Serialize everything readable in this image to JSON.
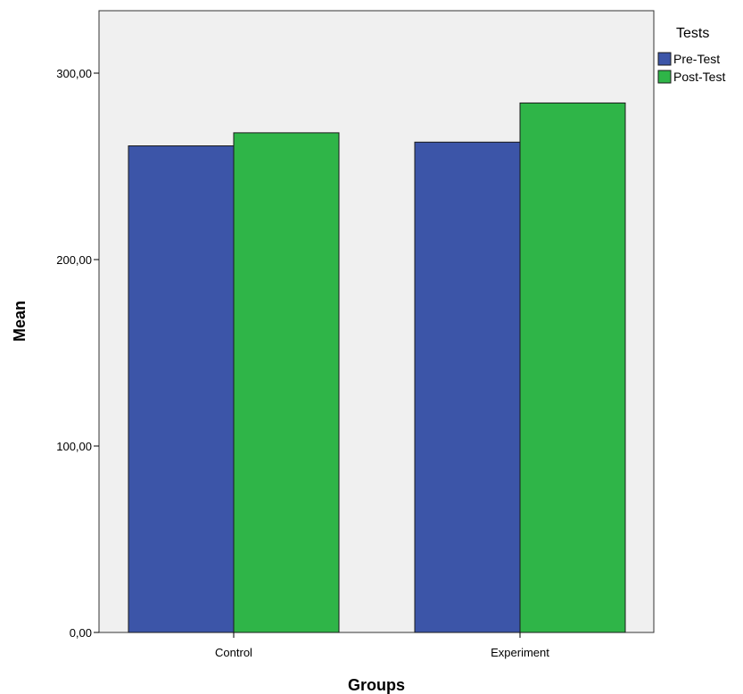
{
  "chart_data": {
    "type": "bar",
    "xlabel": "Groups",
    "ylabel": "Mean",
    "ylim": [
      0,
      330
    ],
    "yticks": [
      0,
      100,
      200,
      300
    ],
    "ytick_labels": [
      "0,00",
      "100,00",
      "200,00",
      "300,00"
    ],
    "categories": [
      "Control",
      "Experiment"
    ],
    "legend": {
      "title": "Tests",
      "placement": "right"
    },
    "series": [
      {
        "name": "Pre-Test",
        "color": "#3c55a8",
        "values": [
          261,
          263
        ]
      },
      {
        "name": "Post-Test",
        "color": "#2fb548",
        "values": [
          268,
          284
        ]
      }
    ],
    "plot_background": "#f0f0f0",
    "grid": false
  }
}
